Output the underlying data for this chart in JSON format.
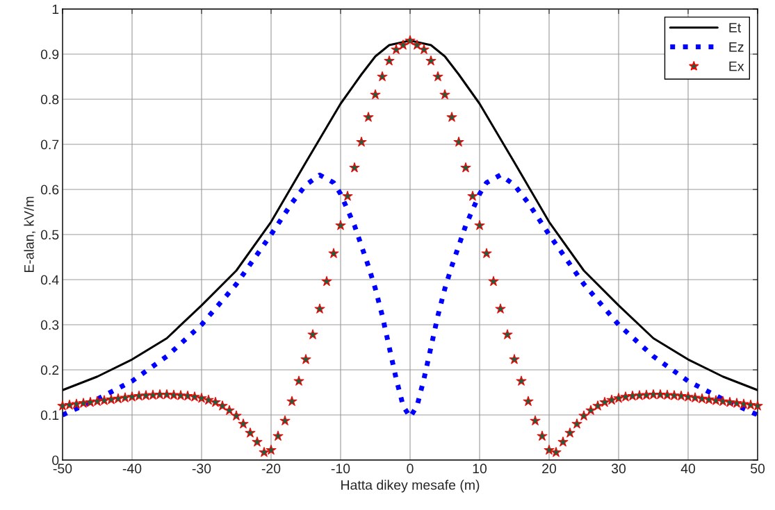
{
  "chart_data": {
    "type": "line",
    "xlabel": "Hatta dikey mesafe (m)",
    "ylabel": "E-alan, kV/m",
    "xlim": [
      -50,
      50
    ],
    "xticks": [
      -50,
      -40,
      -30,
      -20,
      -10,
      0,
      10,
      20,
      30,
      40,
      50
    ],
    "ylim": [
      0,
      1
    ],
    "yticks": [
      0,
      0.1,
      0.2,
      0.3,
      0.4,
      0.5,
      0.6,
      0.7,
      0.8,
      0.9,
      1
    ],
    "grid": true,
    "legend": "top right",
    "series": [
      {
        "name": "Et",
        "color": "#000000",
        "line_style": "solid",
        "marker": "none",
        "x": [
          -50,
          -45,
          -40,
          -35,
          -30,
          -25,
          -20,
          -15,
          -10,
          -7,
          -5,
          -3,
          0,
          3,
          5,
          7,
          10,
          15,
          20,
          25,
          30,
          35,
          40,
          45,
          50
        ],
        "values": [
          0.155,
          0.185,
          0.223,
          0.27,
          0.343,
          0.42,
          0.528,
          0.66,
          0.79,
          0.855,
          0.895,
          0.92,
          0.93,
          0.92,
          0.895,
          0.855,
          0.79,
          0.66,
          0.528,
          0.42,
          0.343,
          0.27,
          0.223,
          0.185,
          0.155
        ]
      },
      {
        "name": "Ez",
        "color": "#0000ff",
        "line_style": "dotted",
        "marker": "none",
        "x": [
          -50,
          -45,
          -40,
          -35,
          -30,
          -25,
          -20,
          -17,
          -15,
          -13,
          -11,
          -10,
          -8,
          -6,
          -5,
          -4,
          -3,
          -2,
          -1,
          0,
          1,
          2,
          3,
          4,
          5,
          6,
          8,
          10,
          11,
          13,
          15,
          17,
          20,
          25,
          30,
          35,
          40,
          45,
          50
        ],
        "values": [
          0.1,
          0.135,
          0.175,
          0.23,
          0.3,
          0.39,
          0.5,
          0.57,
          0.61,
          0.632,
          0.615,
          0.59,
          0.52,
          0.43,
          0.38,
          0.32,
          0.25,
          0.18,
          0.12,
          0.095,
          0.12,
          0.18,
          0.25,
          0.32,
          0.38,
          0.43,
          0.52,
          0.59,
          0.615,
          0.632,
          0.61,
          0.57,
          0.5,
          0.39,
          0.3,
          0.23,
          0.175,
          0.135,
          0.1
        ]
      },
      {
        "name": "Ex",
        "type": "scatter",
        "color": "#1f5f3f",
        "marker": "star",
        "x": [
          -50,
          -49,
          -48,
          -47,
          -46,
          -45,
          -44,
          -43,
          -42,
          -41,
          -40,
          -39,
          -38,
          -37,
          -36,
          -35,
          -34,
          -33,
          -32,
          -31,
          -30,
          -29,
          -28,
          -27,
          -26,
          -25,
          -24,
          -23,
          -22,
          -21,
          -20,
          -19,
          -18,
          -17,
          -16,
          -15,
          -14,
          -13,
          -12,
          -11,
          -10,
          -9,
          -8,
          -7,
          -6,
          -5,
          -4,
          -3,
          -2,
          -1,
          0,
          1,
          2,
          3,
          4,
          5,
          6,
          7,
          8,
          9,
          10,
          11,
          12,
          13,
          14,
          15,
          16,
          17,
          18,
          19,
          20,
          21,
          22,
          23,
          24,
          25,
          26,
          27,
          28,
          29,
          30,
          31,
          32,
          33,
          34,
          35,
          36,
          37,
          38,
          39,
          40,
          41,
          42,
          43,
          44,
          45,
          46,
          47,
          48,
          49,
          50
        ],
        "values": [
          0.12,
          0.122,
          0.124,
          0.126,
          0.128,
          0.13,
          0.132,
          0.134,
          0.136,
          0.138,
          0.14,
          0.142,
          0.143,
          0.144,
          0.145,
          0.145,
          0.144,
          0.143,
          0.142,
          0.14,
          0.137,
          0.133,
          0.128,
          0.12,
          0.11,
          0.098,
          0.08,
          0.06,
          0.04,
          0.017,
          0.022,
          0.053,
          0.087,
          0.13,
          0.175,
          0.223,
          0.278,
          0.335,
          0.396,
          0.458,
          0.52,
          0.585,
          0.648,
          0.705,
          0.76,
          0.81,
          0.85,
          0.885,
          0.91,
          0.92,
          0.93,
          0.92,
          0.91,
          0.885,
          0.85,
          0.81,
          0.76,
          0.705,
          0.648,
          0.585,
          0.52,
          0.458,
          0.396,
          0.335,
          0.278,
          0.223,
          0.175,
          0.13,
          0.087,
          0.053,
          0.022,
          0.017,
          0.04,
          0.06,
          0.08,
          0.098,
          0.11,
          0.12,
          0.128,
          0.133,
          0.137,
          0.14,
          0.142,
          0.143,
          0.144,
          0.145,
          0.145,
          0.144,
          0.143,
          0.142,
          0.14,
          0.138,
          0.136,
          0.134,
          0.132,
          0.13,
          0.128,
          0.126,
          0.124,
          0.122,
          0.12
        ]
      }
    ]
  }
}
